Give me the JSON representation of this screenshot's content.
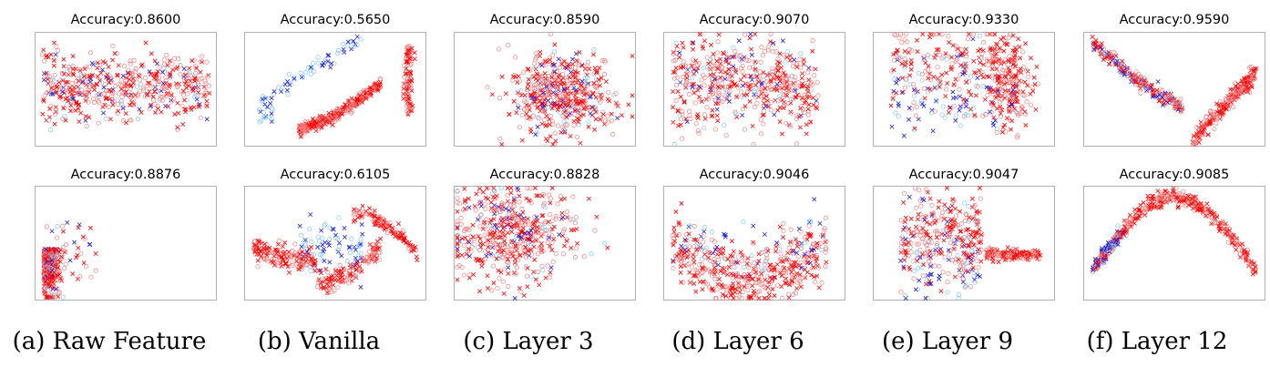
{
  "figure": {
    "captions": [
      "(a) Raw Feature",
      "(b) Vanilla",
      "(c) Layer 3",
      "(d) Layer 6",
      "(e) Layer 9",
      "(f) Layer 12"
    ],
    "colors": {
      "class_a_cross": "#ff0000",
      "class_a_circle": "#f08080",
      "class_b_cross": "#1f1fdc",
      "class_b_circle": "#7ec8f0",
      "axes_border": "#b0b0b0"
    }
  },
  "chart_data": [
    {
      "type": "scatter",
      "row": 1,
      "column": "(a) Raw Feature",
      "title": "Accuracy:0.8600",
      "accuracy": 0.86,
      "layout": "band",
      "xlabel": "",
      "ylabel": "",
      "grid": false
    },
    {
      "type": "scatter",
      "row": 1,
      "column": "(b) Vanilla",
      "title": "Accuracy:0.5650",
      "accuracy": 0.565,
      "layout": "arc-curve",
      "xlabel": "",
      "ylabel": "",
      "grid": false
    },
    {
      "type": "scatter",
      "row": 1,
      "column": "(c) Layer 3",
      "title": "Accuracy:0.8590",
      "accuracy": 0.859,
      "layout": "blob",
      "xlabel": "",
      "ylabel": "",
      "grid": false
    },
    {
      "type": "scatter",
      "row": 1,
      "column": "(d) Layer 6",
      "title": "Accuracy:0.9070",
      "accuracy": 0.907,
      "layout": "spread-left",
      "xlabel": "",
      "ylabel": "",
      "grid": false
    },
    {
      "type": "scatter",
      "row": 1,
      "column": "(e) Layer 9",
      "title": "Accuracy:0.9330",
      "accuracy": 0.933,
      "layout": "spread-right",
      "xlabel": "",
      "ylabel": "",
      "grid": false
    },
    {
      "type": "scatter",
      "row": 1,
      "column": "(f) Layer 12",
      "title": "Accuracy:0.9590",
      "accuracy": 0.959,
      "layout": "u-curve",
      "xlabel": "",
      "ylabel": "",
      "grid": false
    },
    {
      "type": "scatter",
      "row": 2,
      "column": "(a) Raw Feature",
      "title": "Accuracy:0.8876",
      "accuracy": 0.8876,
      "layout": "corner",
      "xlabel": "",
      "ylabel": "",
      "grid": false
    },
    {
      "type": "scatter",
      "row": 2,
      "column": "(b) Vanilla",
      "title": "Accuracy:0.6105",
      "accuracy": 0.6105,
      "layout": "double-arc",
      "xlabel": "",
      "ylabel": "",
      "grid": false
    },
    {
      "type": "scatter",
      "row": 2,
      "column": "(c) Layer 3",
      "title": "Accuracy:0.8828",
      "accuracy": 0.8828,
      "layout": "blob-left",
      "xlabel": "",
      "ylabel": "",
      "grid": false
    },
    {
      "type": "scatter",
      "row": 2,
      "column": "(d) Layer 6",
      "title": "Accuracy:0.9046",
      "accuracy": 0.9046,
      "layout": "bowl",
      "xlabel": "",
      "ylabel": "",
      "grid": false
    },
    {
      "type": "scatter",
      "row": 2,
      "column": "(e) Layer 9",
      "title": "Accuracy:0.9047",
      "accuracy": 0.9047,
      "layout": "tail-right",
      "xlabel": "",
      "ylabel": "",
      "grid": false
    },
    {
      "type": "scatter",
      "row": 2,
      "column": "(f) Layer 12",
      "title": "Accuracy:0.9085",
      "accuracy": 0.9085,
      "layout": "arch",
      "xlabel": "",
      "ylabel": "",
      "grid": false
    }
  ]
}
